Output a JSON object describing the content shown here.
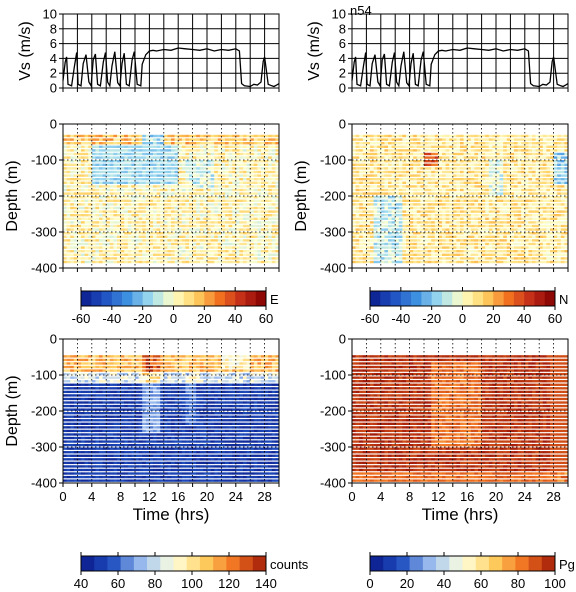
{
  "station_label": "n54",
  "chart_data": [
    {
      "id": "speed-left",
      "type": "line",
      "ylabel": "Vs (m/s)",
      "xlim": [
        0,
        30
      ],
      "ylim": [
        0,
        10
      ],
      "yticks": [
        0,
        2,
        4,
        6,
        8,
        10
      ],
      "xticks": [
        0,
        4,
        8,
        12,
        16,
        20,
        24,
        28
      ],
      "grid": true,
      "series": [
        {
          "x": [
            0,
            0.3,
            0.5,
            0.7,
            1.2,
            1.6,
            1.9,
            2.1,
            2.5,
            2.8,
            3.2,
            3.6,
            3.9,
            4.2,
            4.5,
            4.8,
            5.2,
            5.6,
            5.9,
            6.2,
            6.5,
            6.8,
            7.2,
            7.6,
            7.9,
            8.2,
            8.5,
            8.8,
            9.2,
            9.6,
            9.9,
            10.3,
            10.8,
            11,
            11.5,
            12,
            12.5,
            13,
            14,
            15,
            16,
            17,
            18,
            19,
            20,
            21,
            22,
            23,
            24,
            24.5,
            24.8,
            25.2,
            26,
            26.5,
            27,
            27.5,
            27.8,
            28,
            28.5,
            29,
            29.3,
            29.7,
            30
          ],
          "y": [
            1,
            3.5,
            4.2,
            0.5,
            0.3,
            3,
            4.8,
            0.5,
            0.3,
            3.3,
            4.5,
            0.8,
            0.3,
            3.8,
            4.6,
            0.5,
            0.3,
            3.5,
            4.8,
            0.8,
            0.3,
            3,
            4.9,
            0.7,
            0.3,
            3.3,
            4.7,
            0.5,
            0.3,
            3.8,
            4.9,
            0.5,
            0.3,
            3.2,
            4.5,
            5,
            5.1,
            5,
            5.2,
            5.1,
            5.4,
            5.3,
            5.2,
            5.1,
            5.3,
            5,
            5.2,
            5.1,
            5.3,
            5,
            0.6,
            0.3,
            0.2,
            0.5,
            0.4,
            0.8,
            3.6,
            4.2,
            0.5,
            0.3,
            0.2,
            0.4,
            0.6
          ]
        }
      ]
    },
    {
      "id": "speed-right",
      "type": "line",
      "ylabel": "Vs (m/s)",
      "xlim": [
        0,
        30
      ],
      "ylim": [
        0,
        10
      ],
      "yticks": [
        0,
        2,
        4,
        6,
        8,
        10
      ],
      "xticks": [
        0,
        4,
        8,
        12,
        16,
        20,
        24,
        28
      ],
      "grid": true,
      "series": [
        {
          "x": [
            0,
            0.3,
            0.5,
            0.7,
            1.2,
            1.6,
            1.9,
            2.1,
            2.5,
            2.8,
            3.2,
            3.6,
            3.9,
            4.2,
            4.5,
            4.8,
            5.2,
            5.6,
            5.9,
            6.2,
            6.5,
            6.8,
            7.2,
            7.6,
            7.9,
            8.2,
            8.5,
            8.8,
            9.2,
            9.6,
            9.9,
            10.3,
            10.8,
            11,
            11.5,
            12,
            12.5,
            13,
            14,
            15,
            16,
            17,
            18,
            19,
            20,
            21,
            22,
            23,
            24,
            24.5,
            24.8,
            25.2,
            26,
            26.5,
            27,
            27.5,
            27.8,
            28,
            28.5,
            29,
            29.3,
            29.7,
            30
          ],
          "y": [
            1,
            3.5,
            4.2,
            0.5,
            0.3,
            3,
            4.8,
            0.5,
            0.3,
            3.3,
            4.5,
            0.8,
            0.3,
            3.8,
            4.6,
            0.5,
            0.3,
            3.5,
            4.8,
            0.8,
            0.3,
            3,
            4.9,
            0.7,
            0.3,
            3.3,
            4.7,
            0.5,
            0.3,
            3.8,
            4.9,
            0.5,
            0.3,
            3.2,
            4.5,
            5,
            5.1,
            5,
            5.2,
            5.1,
            5.4,
            5.3,
            5.2,
            5.1,
            5.3,
            5,
            5.2,
            5.1,
            5.3,
            5,
            0.6,
            0.3,
            0.2,
            0.5,
            0.4,
            0.8,
            3.6,
            4.2,
            0.5,
            0.3,
            0.2,
            0.4,
            0.6
          ]
        }
      ]
    },
    {
      "id": "e-velocity",
      "type": "heatmap",
      "ylabel": "Depth (m)",
      "xlim": [
        0,
        30
      ],
      "ylim": [
        -400,
        0
      ],
      "yticks": [
        0,
        -100,
        -200,
        -300,
        -400
      ],
      "xticks": [
        0,
        4,
        8,
        12,
        16,
        20,
        24,
        28
      ],
      "grid": true,
      "color_scale": {
        "label": "E",
        "min": -60,
        "max": 60,
        "ticks": [
          -60,
          -40,
          -20,
          0,
          20,
          40,
          60
        ]
      },
      "depth_range": [
        -390,
        -30
      ],
      "pattern": "mostly near-zero (-15 to 20), negative patch (-30) at 4-16 hrs and -60 to -170 m, positive top layer"
    },
    {
      "id": "n-velocity",
      "type": "heatmap",
      "ylabel": "Depth (m)",
      "xlim": [
        0,
        30
      ],
      "ylim": [
        -400,
        0
      ],
      "yticks": [
        0,
        -100,
        -200,
        -300,
        -400
      ],
      "xticks": [
        0,
        4,
        8,
        12,
        16,
        20,
        24,
        28
      ],
      "grid": true,
      "color_scale": {
        "label": "N",
        "min": -60,
        "max": 60,
        "ticks": [
          -60,
          -40,
          -20,
          0,
          20,
          40,
          60
        ]
      },
      "depth_range": [
        -390,
        -30
      ],
      "pattern": "mostly small positive (0 to 20), weak negative streaks near 4-6 and 20 hrs"
    },
    {
      "id": "echo-counts",
      "type": "heatmap",
      "ylabel": "Depth (m)",
      "xlabel": "Time (hrs)",
      "xlim": [
        0,
        30
      ],
      "ylim": [
        -400,
        0
      ],
      "yticks": [
        0,
        -100,
        -200,
        -300,
        -400
      ],
      "xticks": [
        0,
        4,
        8,
        12,
        16,
        20,
        24,
        28
      ],
      "grid": true,
      "color_scale": {
        "label": "counts",
        "min": 40,
        "max": 140,
        "ticks": [
          40,
          60,
          80,
          100,
          120,
          140
        ]
      },
      "depth_range": [
        -400,
        -45
      ],
      "pattern": "high (100-120) above -90 m, low (45-55) below -120 m, brighter column near 12 hrs"
    },
    {
      "id": "percent-good",
      "type": "heatmap",
      "ylabel": "",
      "xlabel": "Time (hrs)",
      "xlim": [
        0,
        30
      ],
      "ylim": [
        -400,
        0
      ],
      "yticks": [
        0,
        -100,
        -200,
        -300,
        -400
      ],
      "xticks": [
        0,
        4,
        8,
        12,
        16,
        20,
        24,
        28
      ],
      "grid": true,
      "color_scale": {
        "label": "Pg",
        "min": 0,
        "max": 100,
        "ticks": [
          0,
          20,
          40,
          60,
          80,
          100
        ]
      },
      "depth_range": [
        -400,
        -45
      ],
      "pattern": "mostly 90-100, lower (55-75) near 12-18 hrs and near bottom"
    }
  ]
}
